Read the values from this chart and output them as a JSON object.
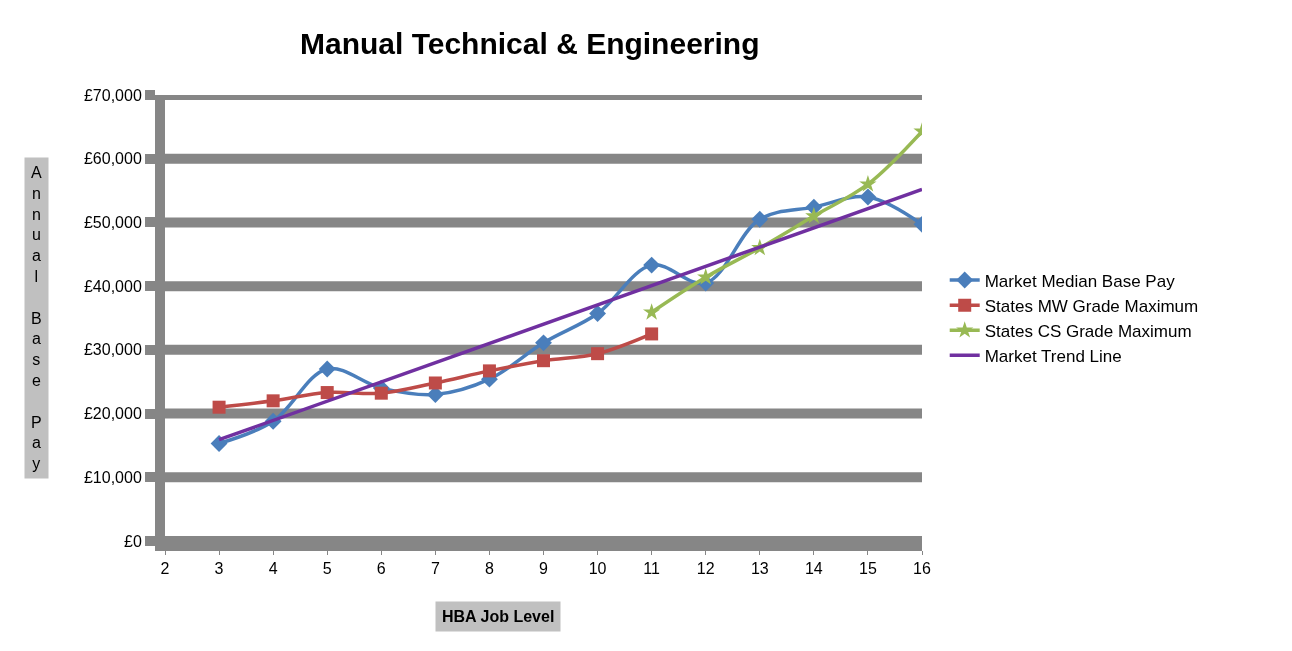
{
  "chart_data": {
    "type": "line",
    "title": "Manual Technical & Engineering",
    "xlabel": "HBA Job Level",
    "ylabel": "Annual Base Pay",
    "xlim": [
      2,
      16
    ],
    "xticks": [
      2,
      3,
      4,
      5,
      6,
      7,
      8,
      9,
      10,
      11,
      12,
      13,
      14,
      15,
      16
    ],
    "ylim": [
      0,
      70000
    ],
    "yticks": [
      {
        "value": 0,
        "label": "£0"
      },
      {
        "value": 10000,
        "label": "£10,000"
      },
      {
        "value": 20000,
        "label": "£20,000"
      },
      {
        "value": 30000,
        "label": "£30,000"
      },
      {
        "value": 40000,
        "label": "£40,000"
      },
      {
        "value": 50000,
        "label": "£50,000"
      },
      {
        "value": 60000,
        "label": "£60,000"
      },
      {
        "value": 70000,
        "label": "£70,000"
      }
    ],
    "grid": "y",
    "legend": "right",
    "series": [
      {
        "name": "Market Median Base Pay",
        "color": "#4a7ebb",
        "marker": "diamond",
        "x": [
          3,
          4,
          5,
          6,
          7,
          8,
          9,
          10,
          11,
          12,
          13,
          14,
          15,
          16
        ],
        "values": [
          15300,
          18800,
          27000,
          24000,
          23000,
          25400,
          31100,
          35700,
          43300,
          40500,
          50500,
          52400,
          54000,
          49700
        ]
      },
      {
        "name": "States MW Grade Maximum",
        "color": "#be4b48",
        "marker": "square",
        "x": [
          3,
          4,
          5,
          6,
          7,
          8,
          9,
          10,
          11
        ],
        "values": [
          21000,
          22000,
          23300,
          23200,
          24800,
          26700,
          28300,
          29400,
          32500
        ]
      },
      {
        "name": "States CS Grade Maximum",
        "color": "#98b954",
        "marker": "star",
        "x": [
          11,
          12,
          13,
          14,
          15,
          16
        ],
        "values": [
          35900,
          41400,
          46000,
          51000,
          56000,
          64300
        ]
      },
      {
        "name": "Market Trend Line",
        "color": "#7030a0",
        "marker": "none",
        "x": [
          3,
          16
        ],
        "values": [
          15900,
          55200
        ]
      }
    ]
  }
}
